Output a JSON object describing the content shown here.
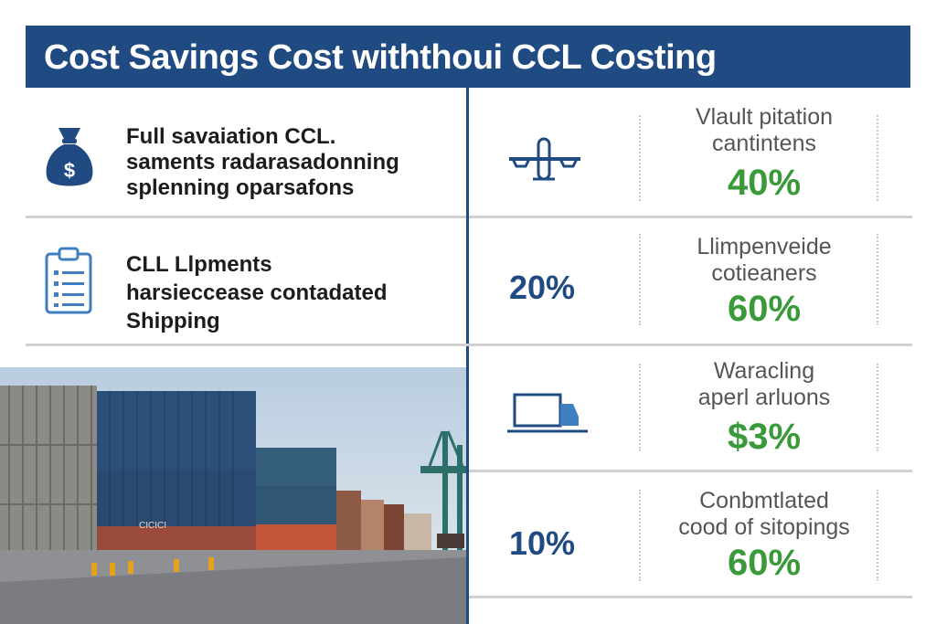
{
  "header": {
    "title": "Cost Savings Cost withthoui  CCL Costing"
  },
  "left_rows": [
    {
      "icon": "money-bag-icon",
      "lines": [
        "Full savaiation CCL.",
        "saments radarasadonning",
        "splenning oparsafons"
      ]
    },
    {
      "icon": "clipboard-icon",
      "lines": [
        "CLL Llpments",
        "harsieccease contadated",
        "Shipping"
      ]
    }
  ],
  "photo": {
    "container_text": "CICICI"
  },
  "right_rows": [
    {
      "icon": "airplane-icon",
      "big": "",
      "label": [
        "Vlault pitation",
        "cantintens"
      ],
      "value": "40%"
    },
    {
      "icon": "",
      "big": "20%",
      "label": [
        "Llimpenveide",
        "cotieaners"
      ],
      "value": "60%"
    },
    {
      "icon": "truck-icon",
      "big": "",
      "label": [
        "Waracling",
        "aperl arluons"
      ],
      "value": "$3%"
    },
    {
      "icon": "",
      "big": "10%",
      "label": [
        "Conbmtlated",
        "cood of sitopings"
      ],
      "value": "60%"
    }
  ],
  "colors": {
    "header_bg": "#1f4a82",
    "accent_green": "#3a9a3a",
    "divider_gray": "#cfcfcf"
  }
}
